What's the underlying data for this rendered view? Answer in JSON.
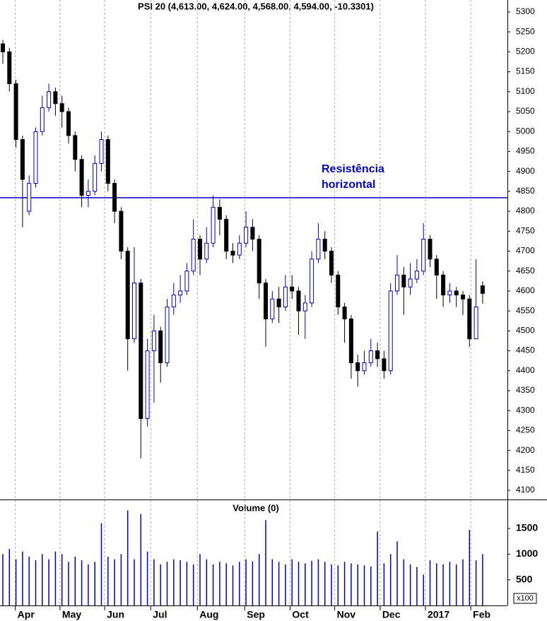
{
  "chart_data": [
    {
      "type": "candlestick",
      "title": "PSI 20 (4,613.00, 4,624.00, 4,568.00, 4,594.00, -10.3301)",
      "up_color": "#0000cc",
      "down_color": "#000000",
      "categories": [
        null,
        null,
        null,
        null,
        null,
        null,
        null,
        null,
        null,
        null,
        null,
        null,
        null,
        null,
        null,
        null,
        null,
        null,
        null,
        null,
        null,
        null,
        null,
        null,
        null,
        null,
        null,
        null,
        null,
        null,
        null,
        null,
        null,
        null,
        null,
        null,
        null,
        null,
        null,
        null,
        null,
        null,
        null,
        null,
        null,
        null,
        null,
        null,
        null,
        null,
        null,
        null,
        null,
        null,
        null,
        null,
        null,
        null,
        null,
        null,
        null,
        null,
        null,
        null,
        null,
        null,
        null,
        null,
        null,
        null,
        null,
        null,
        null,
        null
      ],
      "open": [
        5220,
        5200,
        5120,
        4980,
        4800,
        4870,
        5000,
        5060,
        5100,
        5070,
        5050,
        4990,
        4930,
        4840,
        4850,
        4920,
        4980,
        4870,
        4800,
        4700,
        4480,
        4620,
        4280,
        4450,
        4500,
        4420,
        4560,
        4590,
        4600,
        4650,
        4730,
        4680,
        4720,
        4810,
        4780,
        4700,
        4690,
        4720,
        4760,
        4730,
        4620,
        4530,
        4580,
        4560,
        4610,
        4600,
        4550,
        4570,
        4680,
        4730,
        4700,
        4640,
        4560,
        4530,
        4420,
        4400,
        4420,
        4450,
        4430,
        4400,
        4600,
        4640,
        4610,
        4630,
        4650,
        4730,
        4680,
        4640,
        4590,
        4600,
        4590,
        4580,
        4480,
        4613
      ],
      "high": [
        5230,
        5210,
        5130,
        4990,
        4890,
        5010,
        5090,
        5120,
        5110,
        5090,
        5060,
        5000,
        4940,
        4880,
        4940,
        5000,
        4990,
        4880,
        4810,
        4710,
        4710,
        4630,
        4480,
        4540,
        4510,
        4580,
        4620,
        4640,
        4670,
        4780,
        4740,
        4760,
        4840,
        4830,
        4790,
        4720,
        4740,
        4800,
        4780,
        4740,
        4630,
        4600,
        4610,
        4640,
        4640,
        4610,
        4590,
        4700,
        4770,
        4750,
        4710,
        4650,
        4570,
        4540,
        4440,
        4450,
        4480,
        4470,
        4450,
        4620,
        4690,
        4660,
        4670,
        4680,
        4770,
        4740,
        4690,
        4650,
        4620,
        4610,
        4600,
        4590,
        4680,
        4624
      ],
      "low": [
        5170,
        5100,
        4960,
        4760,
        4790,
        4860,
        4990,
        5050,
        5040,
        5010,
        4970,
        4900,
        4810,
        4810,
        4840,
        4900,
        4850,
        4770,
        4680,
        4400,
        4470,
        4180,
        4260,
        4320,
        4370,
        4410,
        4540,
        4570,
        4590,
        4640,
        4640,
        4670,
        4710,
        4740,
        4680,
        4670,
        4680,
        4710,
        4700,
        4580,
        4460,
        4520,
        4520,
        4550,
        4580,
        4490,
        4480,
        4560,
        4670,
        4680,
        4620,
        4540,
        4470,
        4380,
        4360,
        4390,
        4410,
        4410,
        4380,
        4390,
        4590,
        4540,
        4590,
        4620,
        4640,
        4660,
        4580,
        4560,
        4570,
        4560,
        4540,
        4460,
        4480,
        4568
      ],
      "close": [
        5200,
        5120,
        4980,
        4880,
        4870,
        5000,
        5060,
        5100,
        5070,
        5050,
        4990,
        4930,
        4840,
        4850,
        4920,
        4980,
        4870,
        4800,
        4700,
        4480,
        4620,
        4280,
        4450,
        4500,
        4420,
        4560,
        4590,
        4600,
        4650,
        4730,
        4680,
        4720,
        4810,
        4780,
        4700,
        4690,
        4720,
        4760,
        4730,
        4620,
        4530,
        4580,
        4560,
        4610,
        4600,
        4550,
        4570,
        4680,
        4730,
        4700,
        4640,
        4560,
        4530,
        4420,
        4400,
        4420,
        4450,
        4430,
        4400,
        4600,
        4640,
        4610,
        4630,
        4650,
        4730,
        4680,
        4640,
        4590,
        4600,
        4590,
        4580,
        4480,
        4560,
        4594
      ],
      "ylim": [
        4077,
        5330
      ],
      "yticks": [
        4100,
        4150,
        4200,
        4250,
        4300,
        4350,
        4400,
        4450,
        4500,
        4550,
        4600,
        4650,
        4700,
        4750,
        4800,
        4850,
        4900,
        4950,
        5000,
        5050,
        5100,
        5150,
        5200,
        5250,
        5300
      ],
      "xticks": [
        {
          "value": 1.9,
          "label": "Apr"
        },
        {
          "value": 8.7,
          "label": "May"
        },
        {
          "value": 15.5,
          "label": "Jun"
        },
        {
          "value": 22.5,
          "label": "Jul"
        },
        {
          "value": 29.6,
          "label": "Aug"
        },
        {
          "value": 36.8,
          "label": "Sep"
        },
        {
          "value": 43.7,
          "label": "Oct"
        },
        {
          "value": 50.5,
          "label": "Nov"
        },
        {
          "value": 57.4,
          "label": "Dec"
        },
        {
          "value": 64.3,
          "label": "2017"
        },
        {
          "value": 71.2,
          "label": "Feb"
        }
      ],
      "resistance": {
        "value": 4834,
        "color": "#0000cc",
        "label": [
          "Resistência",
          "horizontal"
        ]
      }
    },
    {
      "type": "bar",
      "title": "Volume (0)",
      "unit_label": "x100",
      "color": "#0000cc",
      "values": [
        1000,
        1100,
        900,
        1050,
        950,
        880,
        1000,
        900,
        1050,
        1000,
        850,
        950,
        880,
        800,
        850,
        1600,
        950,
        900,
        1000,
        1850,
        900,
        1780,
        1050,
        900,
        800,
        850,
        900,
        880,
        850,
        800,
        1000,
        900,
        800,
        850,
        820,
        780,
        850,
        900,
        860,
        1000,
        1660,
        900,
        850,
        800,
        900,
        850,
        820,
        870,
        900,
        850,
        800,
        780,
        850,
        820,
        800,
        780,
        760,
        1440,
        820,
        1000,
        1250,
        900,
        800,
        750,
        600,
        880,
        820,
        800,
        850,
        800,
        900,
        1470,
        880,
        1000
      ],
      "ylim": [
        0,
        2050
      ],
      "yticks": [
        500,
        1000,
        1500
      ]
    }
  ]
}
